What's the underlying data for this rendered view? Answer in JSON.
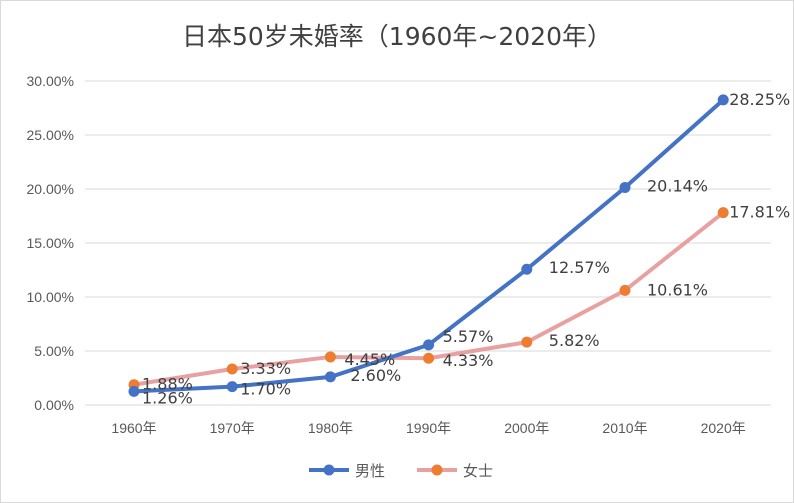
{
  "chart_data": {
    "type": "line",
    "title": "日本50岁未婚率（1960年~2020年）",
    "categories": [
      "1960年",
      "1970年",
      "1980年",
      "1990年",
      "2000年",
      "2010年",
      "2020年"
    ],
    "ylim": [
      0,
      30
    ],
    "yticks": [
      "0.00%",
      "5.00%",
      "10.00%",
      "15.00%",
      "20.00%",
      "25.00%",
      "30.00%"
    ],
    "grid": true,
    "legend_position": "bottom",
    "series": [
      {
        "name": "男性",
        "color": "#4472c4",
        "values": [
          1.26,
          1.7,
          2.6,
          5.57,
          12.57,
          20.14,
          28.25
        ],
        "labels": [
          "1.26%",
          "1.70%",
          "2.60%",
          "5.57%",
          "12.57%",
          "20.14%",
          "28.25%"
        ]
      },
      {
        "name": "女士",
        "color": "#ed7d31",
        "line_color": "#e8a0a0",
        "values": [
          1.88,
          3.33,
          4.45,
          4.33,
          5.82,
          10.61,
          17.81
        ],
        "labels": [
          "1.88%",
          "3.33%",
          "4.45%",
          "4.33%",
          "5.82%",
          "10.61%",
          "17.81%"
        ]
      }
    ]
  }
}
